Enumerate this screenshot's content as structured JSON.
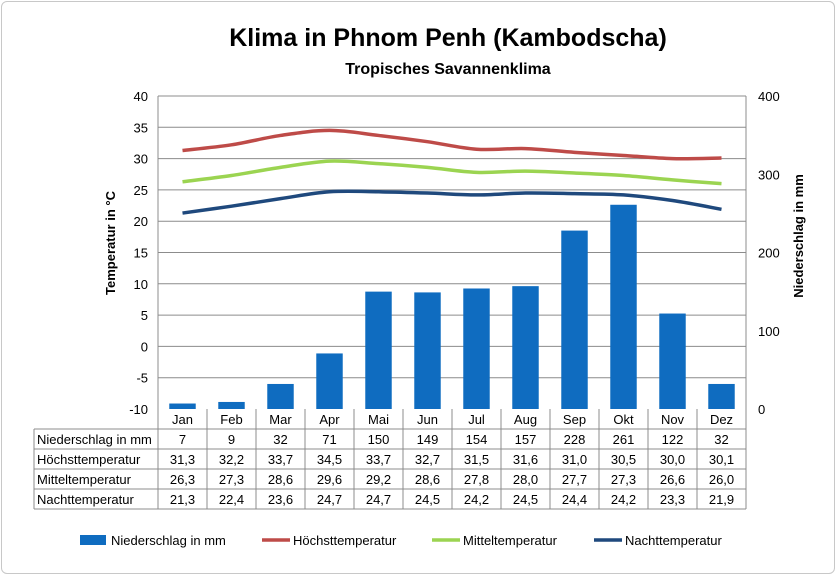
{
  "chart_data": {
    "type": "bar",
    "title": "Klima in Phnom Penh (Kambodscha)",
    "subtitle": "Tropisches Savannenklima",
    "ylabel": "Temperatur in °C",
    "y2label": "Niederschlag in mm",
    "ylim": [
      -10,
      40
    ],
    "y2lim": [
      0,
      400
    ],
    "yticks": [
      "-10",
      "-5",
      "0",
      "5",
      "10",
      "15",
      "20",
      "25",
      "30",
      "35",
      "40"
    ],
    "y2ticks": [
      "0",
      "100",
      "200",
      "300",
      "400"
    ],
    "categories": [
      "Jan",
      "Feb",
      "Mar",
      "Apr",
      "Mai",
      "Jun",
      "Jul",
      "Aug",
      "Sep",
      "Okt",
      "Nov",
      "Dez"
    ],
    "grid": true,
    "legend_position": "bottom",
    "series": [
      {
        "name": "Niederschlag in mm",
        "type": "bar",
        "axis": "right",
        "color": "#0F6CC0",
        "values": [
          7,
          9,
          32,
          71,
          150,
          149,
          154,
          157,
          228,
          261,
          122,
          32
        ],
        "labels": [
          "7",
          "9",
          "32",
          "71",
          "150",
          "149",
          "154",
          "157",
          "228",
          "261",
          "122",
          "32"
        ]
      },
      {
        "name": "Höchsttemperatur",
        "type": "line",
        "axis": "left",
        "color": "#BE4B48",
        "values": [
          31.3,
          32.2,
          33.7,
          34.5,
          33.7,
          32.7,
          31.5,
          31.6,
          31.0,
          30.5,
          30.0,
          30.1
        ],
        "labels": [
          "31,3",
          "32,2",
          "33,7",
          "34,5",
          "33,7",
          "32,7",
          "31,5",
          "31,6",
          "31,0",
          "30,5",
          "30,0",
          "30,1"
        ]
      },
      {
        "name": "Mitteltemperatur",
        "type": "line",
        "axis": "left",
        "color": "#9BD451",
        "values": [
          26.3,
          27.3,
          28.6,
          29.6,
          29.2,
          28.6,
          27.8,
          28.0,
          27.7,
          27.3,
          26.6,
          26.0
        ],
        "labels": [
          "26,3",
          "27,3",
          "28,6",
          "29,6",
          "29,2",
          "28,6",
          "27,8",
          "28,0",
          "27,7",
          "27,3",
          "26,6",
          "26,0"
        ]
      },
      {
        "name": "Nachttemperatur",
        "type": "line",
        "axis": "left",
        "color": "#1F497D",
        "values": [
          21.3,
          22.4,
          23.6,
          24.7,
          24.7,
          24.5,
          24.2,
          24.5,
          24.4,
          24.2,
          23.3,
          21.9
        ],
        "labels": [
          "21,3",
          "22,4",
          "23,6",
          "24,7",
          "24,7",
          "24,5",
          "24,2",
          "24,5",
          "24,4",
          "24,2",
          "23,3",
          "21,9"
        ]
      }
    ]
  }
}
